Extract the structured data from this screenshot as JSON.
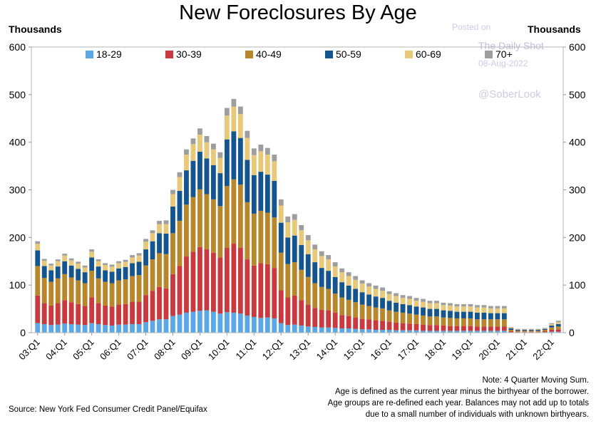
{
  "title": "New Foreclosures By Age",
  "unit_left": "Thousands",
  "unit_right": "Thousands",
  "watermark": {
    "posted_on": "Posted on",
    "site": "The Daily Shot",
    "date": "08-Aug-2022",
    "handle": "@SoberLook"
  },
  "source": "Source: New York Fed Consumer Credit Panel/Equifax",
  "note_lines": [
    "Note: 4 Quarter Moving Sum.",
    "Age is defined as the current year minus the birthyear of the borrower.",
    "Age groups are re-defined each year. Balances may not add up to totals",
    "due to a small number of individuals with unknown birthyears."
  ],
  "chart_data": {
    "type": "bar",
    "stacked": true,
    "ylim": [
      0,
      600
    ],
    "yticks": [
      0,
      100,
      200,
      300,
      400,
      500,
      600
    ],
    "xtick_labels": [
      "03:Q1",
      "04:Q1",
      "05:Q1",
      "06:Q1",
      "07:Q1",
      "08:Q1",
      "09:Q1",
      "10:Q1",
      "11:Q1",
      "12:Q1",
      "13:Q1",
      "14:Q1",
      "15:Q1",
      "16:Q1",
      "17:Q1",
      "18:Q1",
      "19:Q1",
      "20:Q1",
      "21:Q1",
      "22:Q1"
    ],
    "x": [
      "03:Q1",
      "03:Q2",
      "03:Q3",
      "03:Q4",
      "04:Q1",
      "04:Q2",
      "04:Q3",
      "04:Q4",
      "05:Q1",
      "05:Q2",
      "05:Q3",
      "05:Q4",
      "06:Q1",
      "06:Q2",
      "06:Q3",
      "06:Q4",
      "07:Q1",
      "07:Q2",
      "07:Q3",
      "07:Q4",
      "08:Q1",
      "08:Q2",
      "08:Q3",
      "08:Q4",
      "09:Q1",
      "09:Q2",
      "09:Q3",
      "09:Q4",
      "10:Q1",
      "10:Q2",
      "10:Q3",
      "10:Q4",
      "11:Q1",
      "11:Q2",
      "11:Q3",
      "11:Q4",
      "12:Q1",
      "12:Q2",
      "12:Q3",
      "12:Q4",
      "13:Q1",
      "13:Q2",
      "13:Q3",
      "13:Q4",
      "14:Q1",
      "14:Q2",
      "14:Q3",
      "14:Q4",
      "15:Q1",
      "15:Q2",
      "15:Q3",
      "15:Q4",
      "16:Q1",
      "16:Q2",
      "16:Q3",
      "16:Q4",
      "17:Q1",
      "17:Q2",
      "17:Q3",
      "17:Q4",
      "18:Q1",
      "18:Q2",
      "18:Q3",
      "18:Q4",
      "19:Q1",
      "19:Q2",
      "19:Q3",
      "19:Q4",
      "20:Q1",
      "20:Q2",
      "20:Q3",
      "20:Q4",
      "21:Q1",
      "21:Q2",
      "21:Q3",
      "21:Q4",
      "22:Q1",
      "22:Q2"
    ],
    "legend_position": "top",
    "grid": false,
    "series": [
      {
        "name": "18-29",
        "color": "#5aa9e6",
        "values": [
          20,
          18,
          16,
          17,
          19,
          18,
          17,
          16,
          20,
          18,
          16,
          15,
          17,
          17,
          18,
          18,
          22,
          25,
          28,
          28,
          35,
          38,
          42,
          44,
          46,
          47,
          44,
          40,
          43,
          42,
          40,
          36,
          33,
          31,
          32,
          30,
          20,
          16,
          17,
          15,
          13,
          12,
          11,
          11,
          10,
          9,
          9,
          8,
          7,
          7,
          6,
          6,
          6,
          5,
          5,
          5,
          5,
          4,
          4,
          4,
          4,
          4,
          4,
          4,
          4,
          4,
          4,
          4,
          4,
          4,
          1,
          1,
          1,
          1,
          1,
          1,
          2,
          2
        ]
      },
      {
        "name": "30-39",
        "color": "#c9393e",
        "values": [
          58,
          44,
          41,
          45,
          49,
          46,
          43,
          40,
          54,
          44,
          41,
          40,
          42,
          43,
          47,
          47,
          57,
          63,
          68,
          65,
          88,
          102,
          118,
          126,
          134,
          128,
          124,
          118,
          135,
          145,
          138,
          118,
          108,
          115,
          112,
          106,
          69,
          58,
          61,
          53,
          46,
          40,
          37,
          36,
          32,
          28,
          26,
          24,
          22,
          21,
          20,
          19,
          17,
          16,
          15,
          14,
          13,
          13,
          12,
          12,
          11,
          10,
          10,
          10,
          10,
          9,
          9,
          9,
          9,
          9,
          2,
          1,
          1,
          1,
          1,
          2,
          4,
          5
        ]
      },
      {
        "name": "40-49",
        "color": "#b8862b",
        "values": [
          62,
          53,
          50,
          52,
          55,
          52,
          50,
          48,
          56,
          52,
          50,
          49,
          51,
          52,
          54,
          56,
          62,
          66,
          71,
          72,
          86,
          95,
          109,
          115,
          121,
          116,
          112,
          108,
          130,
          135,
          133,
          120,
          109,
          110,
          108,
          106,
          79,
          70,
          70,
          64,
          58,
          52,
          48,
          45,
          40,
          37,
          34,
          32,
          30,
          28,
          27,
          26,
          24,
          23,
          22,
          21,
          20,
          19,
          18,
          18,
          17,
          17,
          16,
          16,
          16,
          15,
          15,
          15,
          15,
          15,
          3,
          2,
          2,
          2,
          2,
          3,
          5,
          6
        ]
      },
      {
        "name": "50-59",
        "color": "#14558f",
        "values": [
          33,
          25,
          24,
          25,
          27,
          25,
          24,
          23,
          28,
          25,
          24,
          24,
          25,
          26,
          27,
          28,
          34,
          38,
          42,
          43,
          56,
          63,
          72,
          76,
          79,
          75,
          72,
          69,
          98,
          101,
          98,
          89,
          81,
          82,
          80,
          77,
          63,
          56,
          56,
          52,
          48,
          44,
          40,
          38,
          35,
          32,
          30,
          28,
          26,
          24,
          23,
          22,
          20,
          19,
          18,
          18,
          17,
          17,
          16,
          16,
          15,
          15,
          14,
          14,
          14,
          14,
          14,
          13,
          13,
          13,
          3,
          2,
          2,
          2,
          2,
          2,
          4,
          5
        ]
      },
      {
        "name": "60-69",
        "color": "#e8c97a",
        "values": [
          14,
          11,
          10,
          11,
          12,
          11,
          11,
          10,
          12,
          11,
          11,
          11,
          11,
          11,
          12,
          13,
          16,
          17,
          19,
          20,
          26,
          29,
          33,
          35,
          36,
          34,
          33,
          32,
          50,
          52,
          50,
          46,
          42,
          43,
          42,
          41,
          36,
          32,
          33,
          31,
          29,
          27,
          25,
          24,
          22,
          21,
          20,
          19,
          18,
          17,
          16,
          15,
          14,
          14,
          13,
          13,
          12,
          12,
          12,
          12,
          11,
          11,
          11,
          11,
          11,
          11,
          11,
          10,
          10,
          10,
          2,
          1,
          1,
          1,
          1,
          1,
          3,
          4
        ]
      },
      {
        "name": "70+",
        "color": "#9e9e9e",
        "values": [
          5,
          4,
          4,
          4,
          4,
          4,
          4,
          4,
          5,
          4,
          4,
          4,
          4,
          4,
          5,
          5,
          6,
          6,
          7,
          8,
          9,
          10,
          11,
          12,
          13,
          13,
          12,
          12,
          16,
          16,
          16,
          15,
          14,
          14,
          14,
          14,
          13,
          12,
          12,
          11,
          11,
          10,
          10,
          9,
          9,
          8,
          8,
          8,
          7,
          7,
          7,
          7,
          6,
          6,
          6,
          6,
          6,
          6,
          5,
          5,
          5,
          5,
          5,
          5,
          5,
          5,
          5,
          5,
          5,
          5,
          1,
          1,
          1,
          1,
          1,
          1,
          2,
          3
        ]
      }
    ]
  }
}
